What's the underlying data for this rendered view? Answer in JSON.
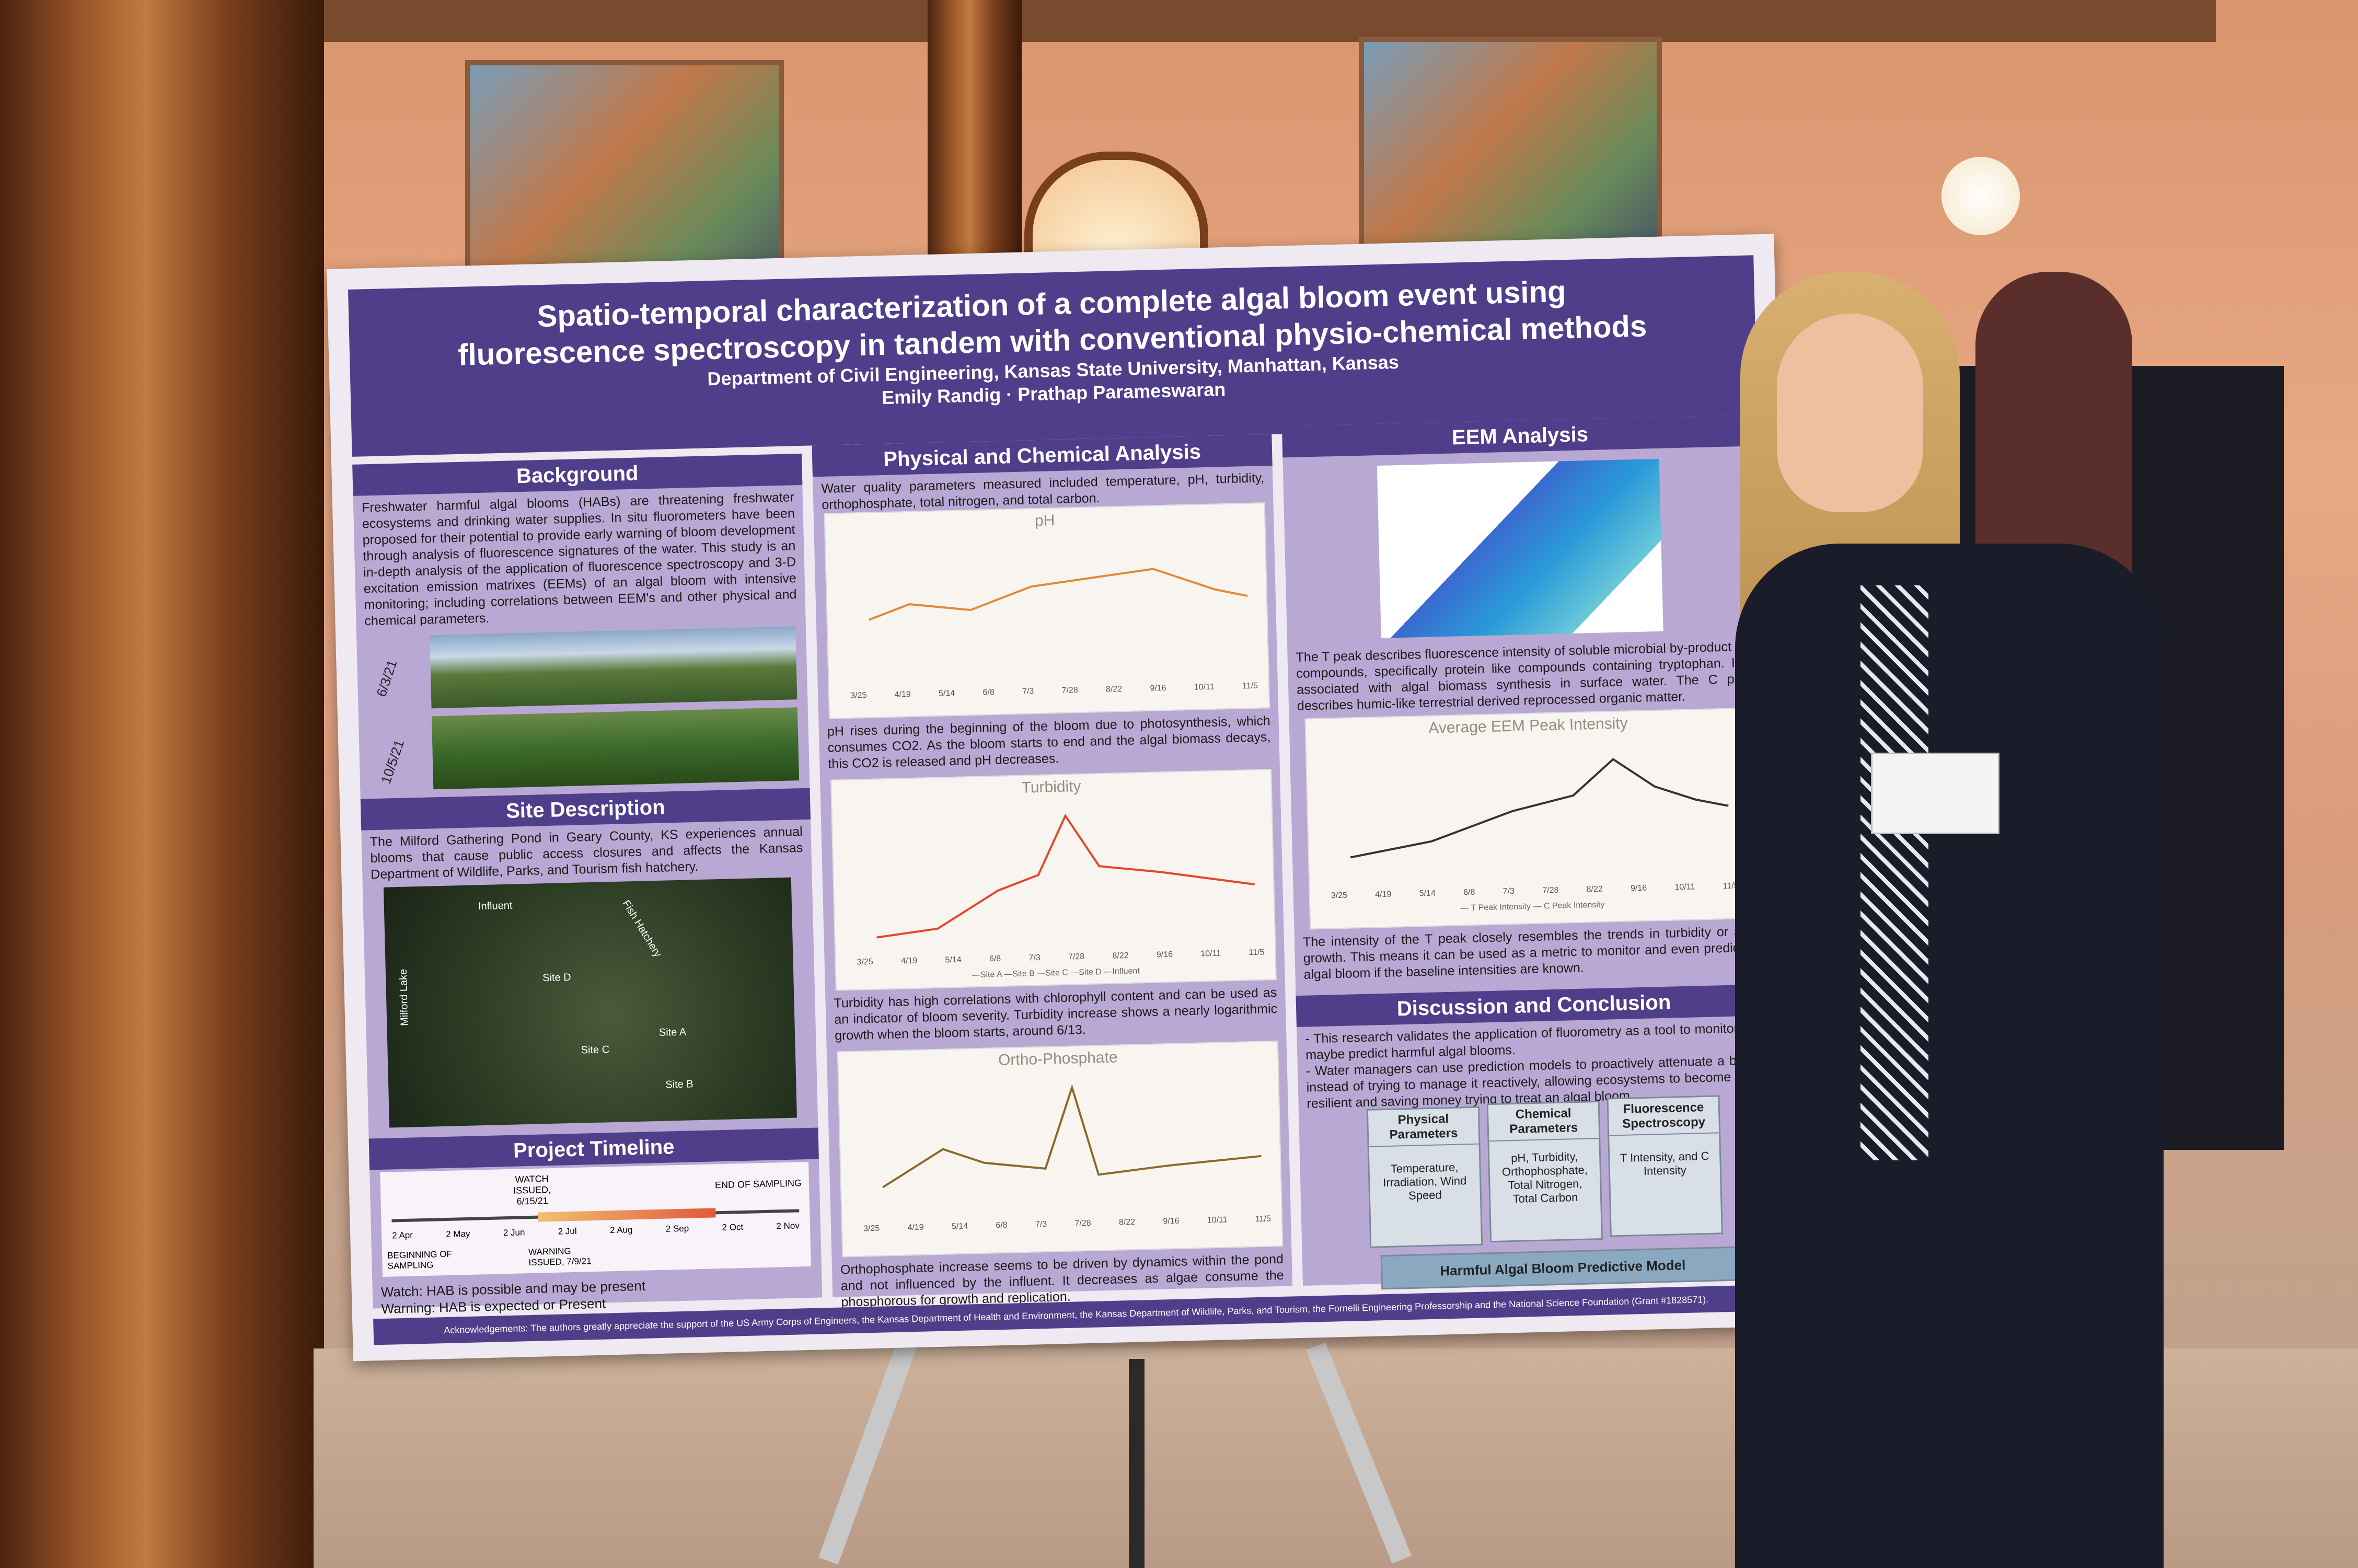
{
  "poster": {
    "title": "Spatio-temporal characterization of a complete algal bloom event using\nfluorescence spectroscopy in tandem with conventional physio-chemical methods",
    "department": "Department of Civil Engineering, Kansas State University, Manhattan, Kansas",
    "authors": "Emily Randig · Prathap Parameswaran",
    "sections": {
      "background": {
        "heading": "Background",
        "text": "Freshwater harmful algal blooms (HABs) are threatening freshwater ecosystems and drinking water supplies. In situ fluorometers have been proposed for their potential to provide early warning of bloom development through analysis of fluorescence signatures of the water. This study is an in-depth analysis of the application of fluorescence spectroscopy and 3-D excitation emission matrixes (EEMs) of an algal bloom with intensive monitoring; including correlations between EEM's and other physical and chemical parameters.",
        "photo_dates": [
          "6/3/21",
          "10/5/21"
        ]
      },
      "site": {
        "heading": "Site Description",
        "text": "The Milford Gathering Pond in Geary County, KS experiences annual blooms that cause public access closures and affects the Kansas Department of Wildlife, Parks, and Tourism fish hatchery.",
        "map_labels": [
          "Influent",
          "Site D",
          "Site C",
          "Site A",
          "Site B",
          "Fish Hatchery",
          "Milford Lake"
        ]
      },
      "timeline": {
        "heading": "Project Timeline",
        "watch": "WATCH ISSUED, 6/15/21",
        "end": "END OF SAMPLING",
        "begin": "BEGINNING OF SAMPLING",
        "warning": "WARNING ISSUED, 7/9/21",
        "months": [
          "2 Apr",
          "2 May",
          "2 Jun",
          "2 Jul",
          "2 Aug",
          "2 Sep",
          "2 Oct",
          "2 Nov"
        ],
        "legend": [
          "Watch: HAB is possible and may be present",
          "Warning: HAB is expected or Present"
        ]
      },
      "physchem": {
        "heading": "Physical and Chemical Analysis",
        "intro": "Water quality parameters measured included temperature, pH, turbidity, orthophosphate, total nitrogen, and total carbon.",
        "ph_title": "pH",
        "ph_text": "pH rises during the beginning of the bloom due to photosynthesis, which consumes CO2. As the bloom starts to end and the algal biomass decays, this CO2 is released and pH decreases.",
        "turb_title": "Turbidity",
        "turb_text": "Turbidity has high correlations with chlorophyll content and can be used as an indicator of bloom severity. Turbidity increase shows a nearly logarithmic growth when the bloom starts, around 6/13.",
        "ortho_title": "Ortho-Phosphate",
        "ortho_text": "Orthophosphate increase seems to be driven by dynamics within the pond and not influenced by the influent. It decreases as algae consume the phosphorous for growth and replication.",
        "x_ticks": [
          "3/25",
          "4/19",
          "5/14",
          "6/8",
          "7/3",
          "7/28",
          "8/22",
          "9/16",
          "10/11",
          "11/5"
        ],
        "legend": "—Site A —Site B —Site C —Site D —Influent"
      },
      "eem": {
        "heading": "EEM Analysis",
        "text1": "The T peak describes fluorescence intensity of soluble microbial by-product like compounds, specifically protein like compounds containing tryptophan. It is associated with algal biomass synthesis in surface water. The C peak describes humic-like terrestrial derived reprocessed organic matter.",
        "chart_title": "Average EEM Peak Intensity",
        "chart_legend": "— T Peak Intensity   — C Peak Intensity",
        "text2": "The intensity of the T peak closely resembles the trends in turbidity or algal growth. This means it can be used as a metric to monitor and even predict an algal bloom if the baseline intensities are known."
      },
      "discussion": {
        "heading": "Discussion and Conclusion",
        "bullets": [
          "- This research validates the application of fluorometry as a tool to monitor and maybe predict harmful algal blooms.",
          "- Water managers can use prediction models to proactively attenuate a bloom instead of trying to manage it reactively, allowing ecosystems to become more resilient and saving money trying to treat an algal bloom."
        ],
        "boxes": [
          {
            "title": "Physical Parameters",
            "body": "Temperature, Irradiation, Wind Speed"
          },
          {
            "title": "Chemical Parameters",
            "body": "pH, Turbidity, Orthophosphate, Total Nitrogen, Total Carbon"
          },
          {
            "title": "Fluorescence Spectroscopy",
            "body": "T Intensity, and C Intensity"
          }
        ],
        "model": "Harmful Algal Bloom Predictive Model"
      }
    },
    "acknowledgements": "Acknowledgements: The authors greatly appreciate the support of the US Army Corps of Engineers, the Kansas Department of Health and Environment, the Kansas Department of Wildlife, Parks, and Tourism, the Fornelli Engineering Professorship and the National Science Foundation (Grant #1828571)."
  },
  "colors": {
    "header": "#4f3f8a",
    "column": "#b9a8d4",
    "paper": "#efe9f2"
  },
  "chart_lines": {
    "ph": [
      [
        0.05,
        0.55
      ],
      [
        0.15,
        0.45
      ],
      [
        0.3,
        0.5
      ],
      [
        0.45,
        0.35
      ],
      [
        0.6,
        0.3
      ],
      [
        0.75,
        0.25
      ],
      [
        0.9,
        0.4
      ],
      [
        0.98,
        0.45
      ]
    ],
    "turb": [
      [
        0.05,
        0.9
      ],
      [
        0.2,
        0.85
      ],
      [
        0.35,
        0.6
      ],
      [
        0.45,
        0.5
      ],
      [
        0.52,
        0.1
      ],
      [
        0.6,
        0.45
      ],
      [
        0.75,
        0.5
      ],
      [
        0.98,
        0.6
      ]
    ],
    "ortho": [
      [
        0.05,
        0.75
      ],
      [
        0.2,
        0.5
      ],
      [
        0.3,
        0.6
      ],
      [
        0.45,
        0.65
      ],
      [
        0.52,
        0.1
      ],
      [
        0.58,
        0.7
      ],
      [
        0.75,
        0.65
      ],
      [
        0.98,
        0.6
      ]
    ],
    "eem": [
      [
        0.05,
        0.8
      ],
      [
        0.25,
        0.7
      ],
      [
        0.45,
        0.5
      ],
      [
        0.6,
        0.4
      ],
      [
        0.7,
        0.15
      ],
      [
        0.8,
        0.35
      ],
      [
        0.9,
        0.45
      ],
      [
        0.98,
        0.5
      ]
    ]
  }
}
